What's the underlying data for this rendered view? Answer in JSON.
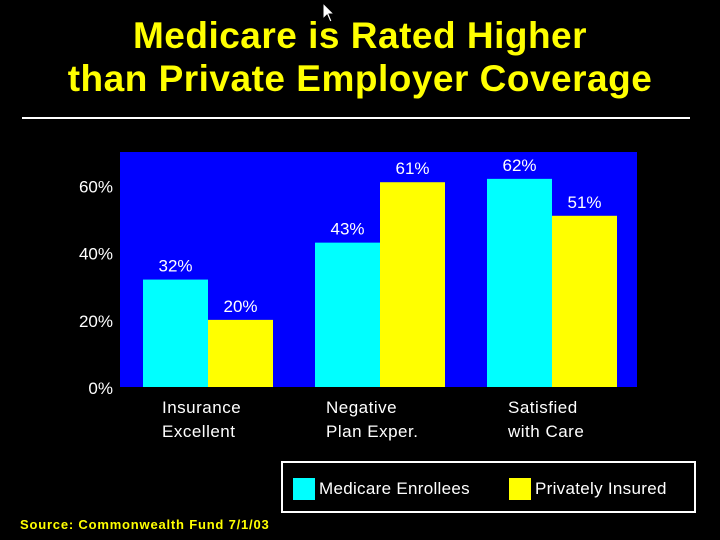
{
  "slide": {
    "title_line1": "Medicare is Rated Higher",
    "title_line2": "than Private Employer Coverage",
    "source": "Source: Commonwealth Fund 7/1/03",
    "colors": {
      "background": "#000000",
      "title": "#FFFF00",
      "plot_background": "#0000FF",
      "medicare": "#00FFFF",
      "private": "#FFFF00",
      "text": "#FFFFFF"
    }
  },
  "chart_data": {
    "type": "bar",
    "categories": [
      [
        "Insurance",
        "Excellent"
      ],
      [
        "Negative",
        "Plan Exper."
      ],
      [
        "Satisfied",
        "with Care"
      ]
    ],
    "series": [
      {
        "name": "Medicare Enrollees",
        "values": [
          32,
          43,
          62
        ],
        "labels": [
          "32%",
          "43%",
          "62%"
        ],
        "color": "#00FFFF"
      },
      {
        "name": "Privately Insured",
        "values": [
          20,
          61,
          51
        ],
        "labels": [
          "20%",
          "61%",
          "51%"
        ],
        "color": "#FFFF00"
      }
    ],
    "ylim": [
      0,
      70
    ],
    "y_ticks": [
      0,
      20,
      40,
      60
    ],
    "y_tick_labels": [
      "0%",
      "20%",
      "40%",
      "60%"
    ],
    "grid": false,
    "legend": "bottom-right"
  }
}
